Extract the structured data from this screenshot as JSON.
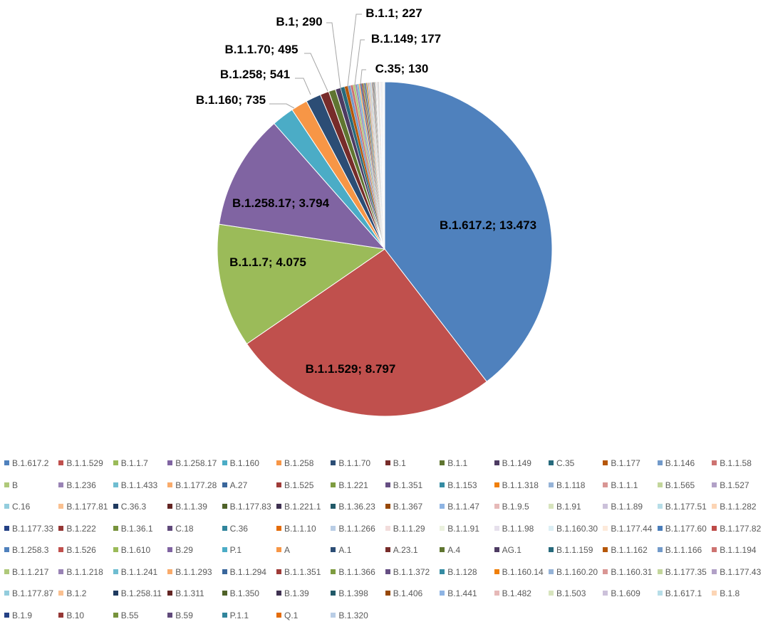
{
  "chart_data": {
    "type": "pie",
    "value_labels_shown": [
      {
        "category": "B.1.617.2",
        "label": "B.1.617.2; 13.473"
      },
      {
        "category": "B.1.1.529",
        "label": "B.1.1.529; 8.797"
      },
      {
        "category": "B.1.1.7",
        "label": "B.1.1.7; 4.075"
      },
      {
        "category": "B.1.258.17",
        "label": "B.1.258.17; 3.794"
      },
      {
        "category": "B.1.160",
        "label": "B.1.160; 735"
      },
      {
        "category": "B.1.258",
        "label": "B.1.258; 541"
      },
      {
        "category": "B.1.1.70",
        "label": "B.1.1.70; 495"
      },
      {
        "category": "B.1",
        "label": "B.1; 290"
      },
      {
        "category": "B.1.1",
        "label": "B.1.1; 227"
      },
      {
        "category": "B.1.149",
        "label": "B.1.149; 177"
      },
      {
        "category": "C.35",
        "label": "C.35; 130"
      }
    ],
    "categories": [
      "B.1.617.2",
      "B.1.1.529",
      "B.1.1.7",
      "B.1.258.17",
      "B.1.160",
      "B.1.258",
      "B.1.1.70",
      "B.1",
      "B.1.1",
      "B.1.149",
      "C.35",
      "B.1.177",
      "B.1.146",
      "B.1.1.58",
      "B",
      "B.1.236",
      "B.1.1.433",
      "B.1.177.28",
      "A.27",
      "B.1.525",
      "B.1.221",
      "B.1.351",
      "B.1.153",
      "B.1.1.318",
      "B.1.118",
      "B.1.1.1",
      "B.1.565",
      "B.1.527",
      "C.16",
      "B.1.177.81",
      "C.36.3",
      "B.1.1.39",
      "B.1.177.83",
      "B.1.221.1",
      "B.1.36.23",
      "B.1.367",
      "B.1.1.47",
      "B.1.9.5",
      "B.1.91",
      "B.1.1.89",
      "B.1.177.51",
      "B.1.1.282",
      "B.1.177.33",
      "B.1.222",
      "B.1.36.1",
      "C.18",
      "C.36",
      "B.1.1.10",
      "B.1.1.266",
      "B.1.1.29",
      "B.1.1.91",
      "B.1.1.98",
      "B.1.160.30",
      "B.1.177.44",
      "B.1.177.60",
      "B.1.177.82",
      "B.1.258.3",
      "B.1.526",
      "B.1.610",
      "B.29",
      "P.1",
      "A",
      "A.1",
      "A.23.1",
      "A.4",
      "AG.1",
      "B.1.1.159",
      "B.1.1.162",
      "B.1.1.166",
      "B.1.1.194",
      "B.1.1.217",
      "B.1.1.218",
      "B.1.1.241",
      "B.1.1.293",
      "B.1.1.294",
      "B.1.1.351",
      "B.1.1.366",
      "B.1.1.372",
      "B.1.128",
      "B.1.160.14",
      "B.1.160.20",
      "B.1.160.31",
      "B.1.177.35",
      "B.1.177.43",
      "B.1.177.87",
      "B.1.2",
      "B.1.258.11",
      "B.1.311",
      "B.1.350",
      "B.1.39",
      "B.1.398",
      "B.1.406",
      "B.1.441",
      "B.1.482",
      "B.1.503",
      "B.1.609",
      "B.1.617.1",
      "B.1.8",
      "B.1.9",
      "B.10",
      "B.55",
      "B.59",
      "P.1.1",
      "Q.1",
      "B.1.320"
    ],
    "values": [
      13473,
      8797,
      4075,
      3794,
      735,
      541,
      495,
      290,
      227,
      177,
      130,
      110,
      90,
      80,
      70,
      60,
      55,
      50,
      45,
      42,
      40,
      38,
      35,
      33,
      30,
      28,
      26,
      25,
      24,
      22,
      20,
      19,
      18,
      17,
      16,
      15,
      14,
      13,
      12,
      12,
      11,
      11,
      10,
      10,
      9,
      9,
      8,
      8,
      8,
      7,
      7,
      7,
      6,
      6,
      6,
      6,
      5,
      5,
      5,
      5,
      5,
      4,
      4,
      4,
      4,
      4,
      4,
      4,
      3,
      3,
      3,
      3,
      3,
      3,
      3,
      3,
      3,
      3,
      2,
      2,
      2,
      2,
      2,
      2,
      2,
      2,
      2,
      2,
      2,
      2,
      2,
      2,
      2,
      2,
      2,
      2,
      1,
      1,
      1,
      1,
      1,
      1,
      1,
      1,
      1
    ],
    "colors": [
      "#4f81bd",
      "#c0504d",
      "#9bbb59",
      "#8064a2",
      "#4bacc6",
      "#f79646",
      "#2c4d75",
      "#772c2a",
      "#5f7530",
      "#4d3b62",
      "#276a7c",
      "#b65708",
      "#729aca",
      "#cd7371",
      "#afc97a",
      "#9983b5",
      "#6fbdd1",
      "#f9ab6b",
      "#3a679c",
      "#9f3b38",
      "#7e9c40",
      "#664f83",
      "#358ca3",
      "#f07f09",
      "#95b3d7",
      "#d99694",
      "#c3d69b",
      "#b2a1c7",
      "#93cddd",
      "#fac090",
      "#1f3a5f",
      "#632523",
      "#4f6228",
      "#3f3151",
      "#215968",
      "#974806",
      "#8eb4e3",
      "#e6b9b8",
      "#d7e4bd",
      "#ccc1da",
      "#b7dee8",
      "#fcd5b5",
      "#244185",
      "#953735",
      "#77933c",
      "#604a7b",
      "#31859c",
      "#e46c0a",
      "#b9cde5",
      "#f2dcdb",
      "#ebf1de",
      "#e6e0ec",
      "#dbeef4",
      "#fdeada",
      "#4a7ebb",
      "#be4b48"
    ],
    "legend_position": "bottom"
  }
}
